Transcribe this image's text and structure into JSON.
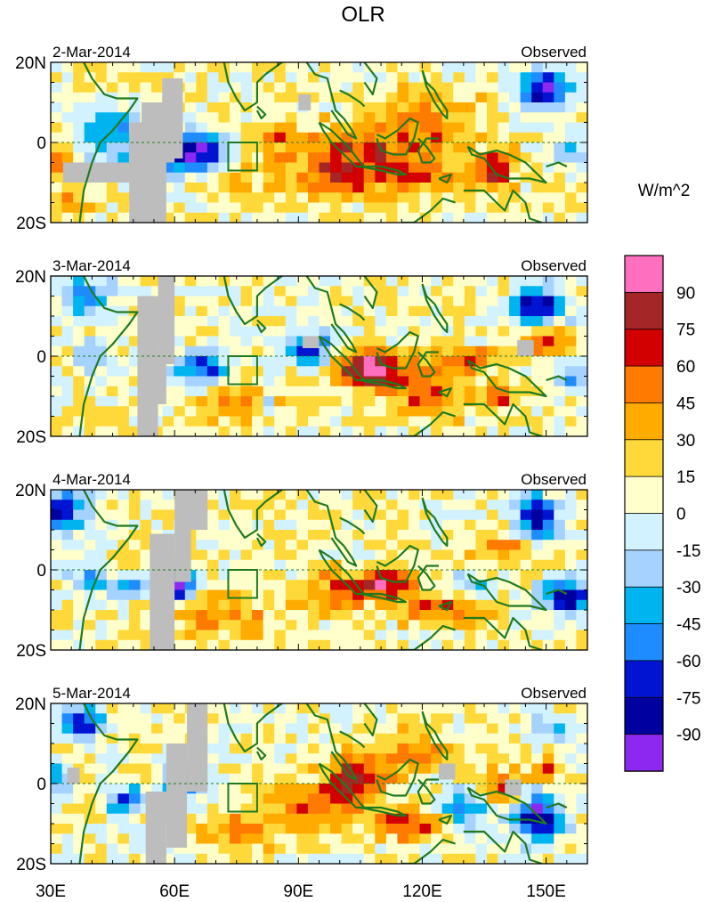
{
  "chart_data": {
    "type": "heatmap",
    "title": "OLR",
    "units": "W/m^2",
    "x_ticks": [
      "30E",
      "60E",
      "90E",
      "120E",
      "150E"
    ],
    "y_ticks": [
      "20N",
      "0",
      "20S"
    ],
    "xlim_deg_e": [
      30,
      160
    ],
    "ylim_deg": [
      -20,
      20
    ],
    "legend": {
      "labels": [
        "90",
        "75",
        "60",
        "45",
        "30",
        "15",
        "0",
        "-15",
        "-30",
        "-45",
        "-60",
        "-75",
        "-90"
      ],
      "colors": [
        "#ff6fc0",
        "#a52626",
        "#d20000",
        "#ff7a00",
        "#ffab00",
        "#ffd93a",
        "#ffffcc",
        "#d2f2ff",
        "#a6d2ff",
        "#00b4f0",
        "#1e8cff",
        "#0014d2",
        "#0000a0",
        "#8c28f0"
      ]
    },
    "panels": [
      {
        "date": "2-Mar-2014",
        "label": "Observed"
      },
      {
        "date": "3-Mar-2014",
        "label": "Observed"
      },
      {
        "date": "4-Mar-2014",
        "label": "Observed"
      },
      {
        "date": "5-Mar-2014",
        "label": "Observed"
      }
    ]
  }
}
